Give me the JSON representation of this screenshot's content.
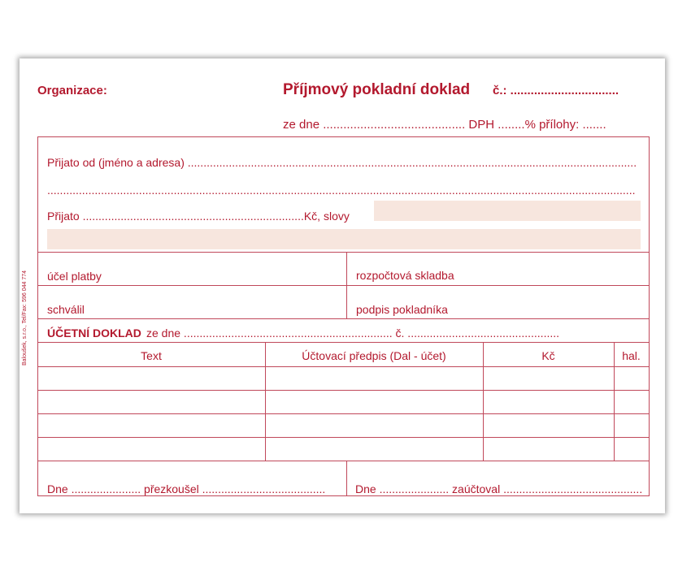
{
  "header": {
    "organization_label": "Organizace:",
    "title": "Příjmový pokladní doklad",
    "number_label": "č.: ................................",
    "date_line": "ze dne .......................................... DPH ........% přílohy: ......."
  },
  "received": {
    "from_label": "Přijato od (jméno a adresa) ..............................................................................................................................................",
    "from_line2": "..........................................................................................................................................................................................",
    "amount_label": "Přijato ......................................................................Kč, slovy"
  },
  "fields": {
    "purpose": "účel platby",
    "budget": "rozpočtová skladba",
    "approved": "schválil",
    "cashier_signature": "podpis pokladníka"
  },
  "accounting": {
    "title": "ÚČETNÍ DOKLAD",
    "date_line": "ze dne .................................................................. č. ................................................",
    "columns": [
      "Text",
      "Účtovací předpis (Dal - účet)",
      "Kč",
      "hal."
    ]
  },
  "footer": {
    "checked": "Dne ...................... přezkoušel .......................................",
    "posted": "Dne ...................... zaúčtoval ............................................"
  },
  "side_imprint": "Baloušek, s.r.o., Tel/Fax: 596 044 774",
  "colors": {
    "ink": "#b3192e",
    "shade": "#f7e6de"
  }
}
